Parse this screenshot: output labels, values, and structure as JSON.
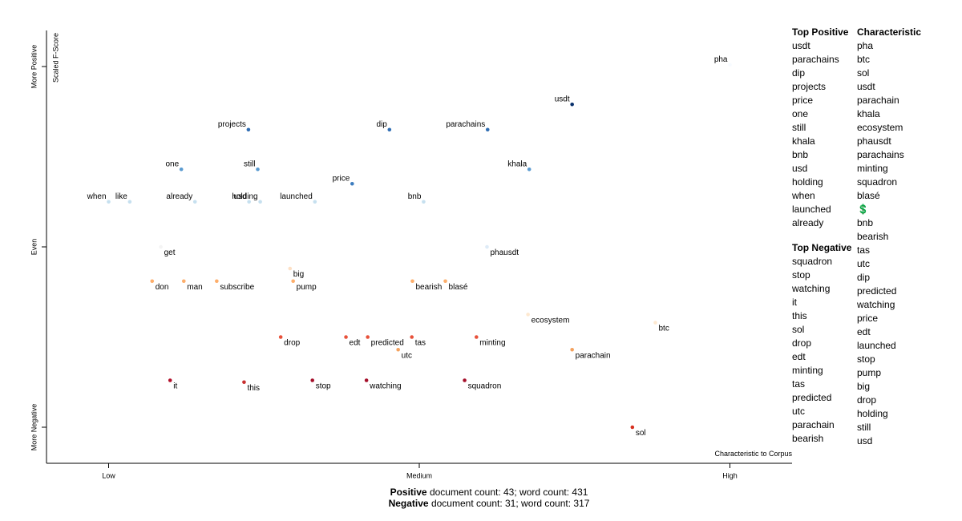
{
  "chart_data": {
    "type": "scatter",
    "y_axis_title": "Scaled F-Score",
    "x_axis_title": "Characteristic to Corpus",
    "xlim": [
      -0.1,
      1.1
    ],
    "ylim": [
      -1.2,
      1.2
    ],
    "xticks": [
      {
        "value": 0,
        "label": "Low"
      },
      {
        "value": 0.5,
        "label": "Medium"
      },
      {
        "value": 1,
        "label": "High"
      }
    ],
    "yticks": [
      {
        "value": 1,
        "label": "More Positive"
      },
      {
        "value": 0,
        "label": "Even"
      },
      {
        "value": -1,
        "label": "More Negative"
      }
    ],
    "points": [
      {
        "label": "pha",
        "x": 1.0,
        "y": 1.01,
        "color": "#f7fbff"
      },
      {
        "label": "usdt",
        "x": 0.746,
        "y": 0.79,
        "color": "#08306b"
      },
      {
        "label": "projects",
        "x": 0.225,
        "y": 0.65,
        "color": "#2f6db3"
      },
      {
        "label": "dip",
        "x": 0.452,
        "y": 0.65,
        "color": "#2f6db3"
      },
      {
        "label": "parachains",
        "x": 0.61,
        "y": 0.65,
        "color": "#2f6db3"
      },
      {
        "label": "one",
        "x": 0.117,
        "y": 0.43,
        "color": "#5b9bd0"
      },
      {
        "label": "still",
        "x": 0.24,
        "y": 0.43,
        "color": "#5b9bd0"
      },
      {
        "label": "khala",
        "x": 0.677,
        "y": 0.43,
        "color": "#5b9bd0"
      },
      {
        "label": "price",
        "x": 0.392,
        "y": 0.35,
        "color": "#3d7dbf"
      },
      {
        "label": "when",
        "x": 0.0,
        "y": 0.25,
        "color": "#c6e0ef"
      },
      {
        "label": "like",
        "x": 0.034,
        "y": 0.25,
        "color": "#c6e0ef"
      },
      {
        "label": "already",
        "x": 0.139,
        "y": 0.25,
        "color": "#c6e0ef"
      },
      {
        "label": "usd",
        "x": 0.226,
        "y": 0.25,
        "color": "#c6e0ef"
      },
      {
        "label": "holding",
        "x": 0.244,
        "y": 0.25,
        "color": "#c6e0ef"
      },
      {
        "label": "launched",
        "x": 0.332,
        "y": 0.25,
        "color": "#c6e0ef"
      },
      {
        "label": "bnb",
        "x": 0.507,
        "y": 0.25,
        "color": "#c6e0ef"
      },
      {
        "label": "get",
        "x": 0.084,
        "y": 0.0,
        "color": "#f4f4f4"
      },
      {
        "label": "phausdt",
        "x": 0.609,
        "y": 0.0,
        "color": "#deebf7"
      },
      {
        "label": "big",
        "x": 0.292,
        "y": -0.12,
        "color": "#fde0c5"
      },
      {
        "label": "don",
        "x": 0.07,
        "y": -0.19,
        "color": "#fdae6b"
      },
      {
        "label": "man",
        "x": 0.121,
        "y": -0.19,
        "color": "#fdae6b"
      },
      {
        "label": "subscribe",
        "x": 0.174,
        "y": -0.19,
        "color": "#fdae6b"
      },
      {
        "label": "pump",
        "x": 0.297,
        "y": -0.19,
        "color": "#fdae6b"
      },
      {
        "label": "bearish",
        "x": 0.489,
        "y": -0.19,
        "color": "#fdae6b"
      },
      {
        "label": "blasé",
        "x": 0.542,
        "y": -0.19,
        "color": "#fdae6b"
      },
      {
        "label": "ecosystem",
        "x": 0.675,
        "y": -0.375,
        "color": "#fee8d0"
      },
      {
        "label": "btc",
        "x": 0.88,
        "y": -0.42,
        "color": "#fee8d0"
      },
      {
        "label": "drop",
        "x": 0.277,
        "y": -0.5,
        "color": "#e8513a"
      },
      {
        "label": "edt",
        "x": 0.382,
        "y": -0.5,
        "color": "#e8513a"
      },
      {
        "label": "predicted",
        "x": 0.417,
        "y": -0.5,
        "color": "#e8513a"
      },
      {
        "label": "tas",
        "x": 0.488,
        "y": -0.5,
        "color": "#e8513a"
      },
      {
        "label": "minting",
        "x": 0.592,
        "y": -0.5,
        "color": "#e8513a"
      },
      {
        "label": "utc",
        "x": 0.466,
        "y": -0.57,
        "color": "#f4a15d"
      },
      {
        "label": "parachain",
        "x": 0.746,
        "y": -0.57,
        "color": "#f4a15d"
      },
      {
        "label": "it",
        "x": 0.099,
        "y": -0.74,
        "color": "#b3112c"
      },
      {
        "label": "this",
        "x": 0.218,
        "y": -0.75,
        "color": "#c82f2f"
      },
      {
        "label": "stop",
        "x": 0.328,
        "y": -0.74,
        "color": "#a50f2a"
      },
      {
        "label": "watching",
        "x": 0.415,
        "y": -0.74,
        "color": "#a50f2a"
      },
      {
        "label": "squadron",
        "x": 0.573,
        "y": -0.74,
        "color": "#a50f2a"
      },
      {
        "label": "sol",
        "x": 0.843,
        "y": -1.0,
        "color": "#d7301f"
      }
    ],
    "top_positive_title": "Top Positive",
    "top_positive": [
      "usdt",
      "parachains",
      "dip",
      "projects",
      "price",
      "one",
      "still",
      "khala",
      "bnb",
      "usd",
      "holding",
      "when",
      "launched",
      "already"
    ],
    "top_negative_title": "Top Negative",
    "top_negative": [
      "squadron",
      "stop",
      "watching",
      "it",
      "this",
      "sol",
      "drop",
      "edt",
      "minting",
      "tas",
      "predicted",
      "utc",
      "parachain",
      "bearish"
    ],
    "characteristic_title": "Characteristic",
    "characteristic": [
      "pha",
      "btc",
      "sol",
      "usdt",
      "parachain",
      "khala",
      "ecosystem",
      "phausdt",
      "parachains",
      "minting",
      "squadron",
      "blasé",
      "💲",
      "bnb",
      "bearish",
      "tas",
      "utc",
      "dip",
      "predicted",
      "watching",
      "price",
      "edt",
      "launched",
      "stop",
      "pump",
      "big",
      "drop",
      "holding",
      "still",
      "usd"
    ],
    "footer": [
      {
        "label": "Positive",
        "text": "document count: 43; word count: 431"
      },
      {
        "label": "Negative",
        "text": "document count: 31; word count: 317"
      }
    ]
  }
}
